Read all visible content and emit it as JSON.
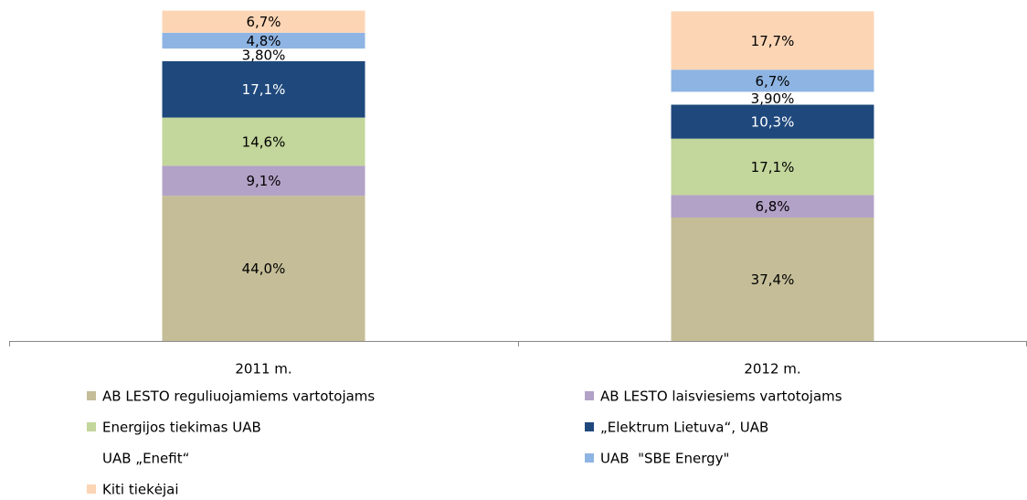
{
  "chart_data": {
    "type": "stacked_bar",
    "categories": [
      "2011 m.",
      "2012 m."
    ],
    "ylim": [
      0,
      100
    ],
    "series": [
      {
        "name": "AB LESTO reguliuojamiems vartotojams",
        "color": "#c4bd97",
        "values": [
          44.0,
          37.4
        ],
        "value_labels": [
          "44,0%",
          "37,4%"
        ]
      },
      {
        "name": "AB LESTO laisviesiems vartotojams",
        "color": "#b3a2c7",
        "values": [
          9.1,
          6.8
        ],
        "value_labels": [
          "9,1%",
          "6,8%"
        ]
      },
      {
        "name": "Energijos tiekimas UAB",
        "color": "#c3d69b",
        "values": [
          14.6,
          17.1
        ],
        "value_labels": [
          "14,6%",
          "17,1%"
        ]
      },
      {
        "name": "„Elektrum Lietuva“, UAB",
        "color": "#1f497d",
        "values": [
          17.1,
          10.3
        ],
        "value_labels": [
          "17,1%",
          "10,3%"
        ]
      },
      {
        "name": "UAB „Enefit“",
        "color": "#ffffff",
        "values": [
          3.8,
          3.9
        ],
        "value_labels": [
          "3,80%",
          "3,90%"
        ]
      },
      {
        "name": "UAB  \"SBE Energy\"",
        "color": "#8eb4e3",
        "values": [
          4.8,
          6.7
        ],
        "value_labels": [
          "4,8%",
          "6,7%"
        ]
      },
      {
        "name": "Kiti tiekėjai",
        "color": "#fcd5b5",
        "values": [
          6.7,
          17.7
        ],
        "value_labels": [
          "6,7%",
          "17,7%"
        ]
      }
    ]
  }
}
